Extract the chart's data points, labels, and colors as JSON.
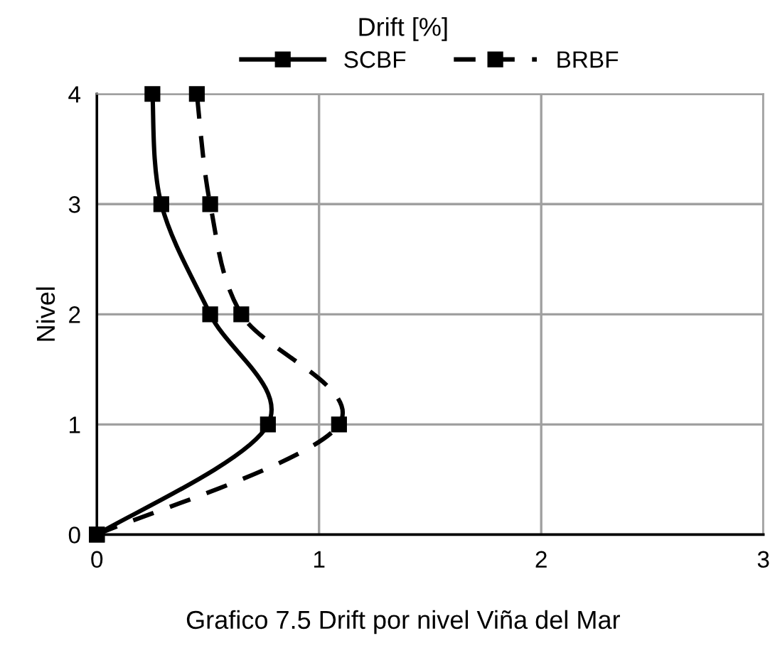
{
  "chart_data": {
    "type": "line",
    "title": "Drift [%]",
    "ylabel": "Nivel",
    "series": [
      {
        "name": "SCBF",
        "color": "#000000",
        "line_style": "solid",
        "x": [
          0,
          0.77,
          0.51,
          0.29,
          0.25
        ],
        "values": [
          0,
          1,
          2,
          3,
          4
        ]
      },
      {
        "name": "BRBF",
        "color": "#000000",
        "line_style": "dashed",
        "x": [
          0,
          1.09,
          0.65,
          0.51,
          0.45
        ],
        "values": [
          0,
          1,
          2,
          3,
          4
        ]
      }
    ],
    "xlim": [
      0,
      3
    ],
    "xticks": [
      0,
      1,
      2,
      3
    ],
    "ylim": [
      0,
      4
    ],
    "yticks": [
      0,
      1,
      2,
      3,
      4
    ],
    "grid": true,
    "legend": "top",
    "marker": "square",
    "annotations": [
      "Grafico 7.5 Drift por nivel Viña del Mar"
    ]
  }
}
